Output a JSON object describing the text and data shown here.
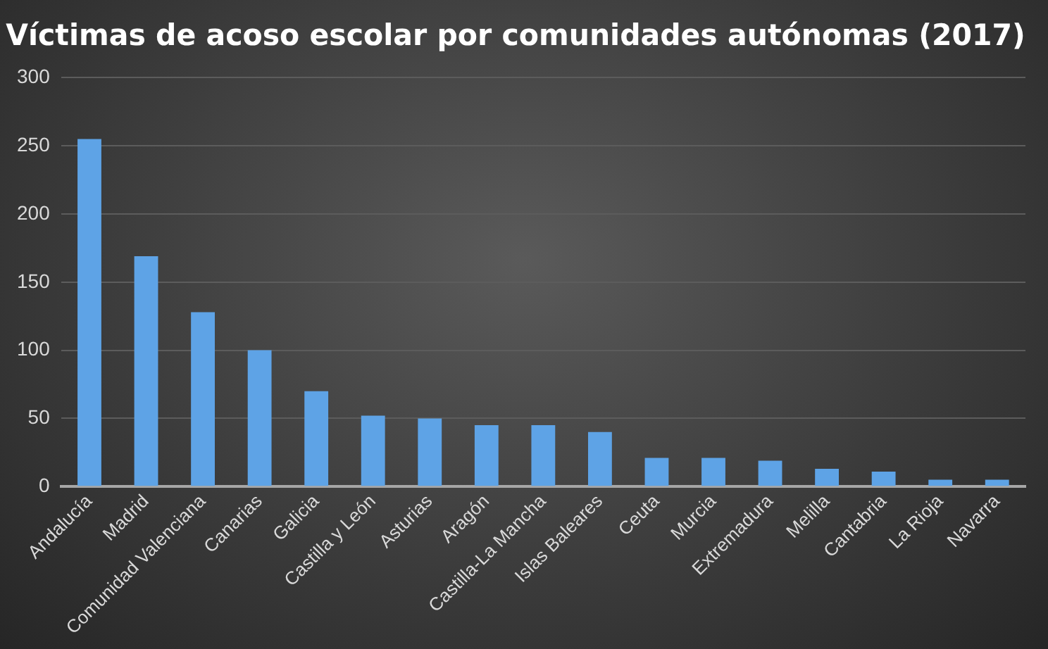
{
  "chart_data": {
    "type": "bar",
    "title": "Víctimas de acoso escolar por comunidades autónomas (2017)",
    "categories": [
      "Andalucía",
      "Madrid",
      "Comunidad Valenciana",
      "Canarias",
      "Galicia",
      "Castilla y León",
      "Asturias",
      "Aragón",
      "Castilla-La Mancha",
      "Islas Baleares",
      "Ceuta",
      "Murcia",
      "Extremadura",
      "Melilla",
      "Cantabria",
      "La Rioja",
      "Navarra"
    ],
    "values": [
      255,
      169,
      128,
      100,
      70,
      52,
      50,
      45,
      45,
      40,
      21,
      21,
      19,
      13,
      11,
      5,
      5
    ],
    "color": "#5ea3e6",
    "ylim": [
      0,
      300
    ],
    "yticks": [
      0,
      50,
      100,
      150,
      200,
      250,
      300
    ],
    "grid": "y",
    "legend": false
  }
}
